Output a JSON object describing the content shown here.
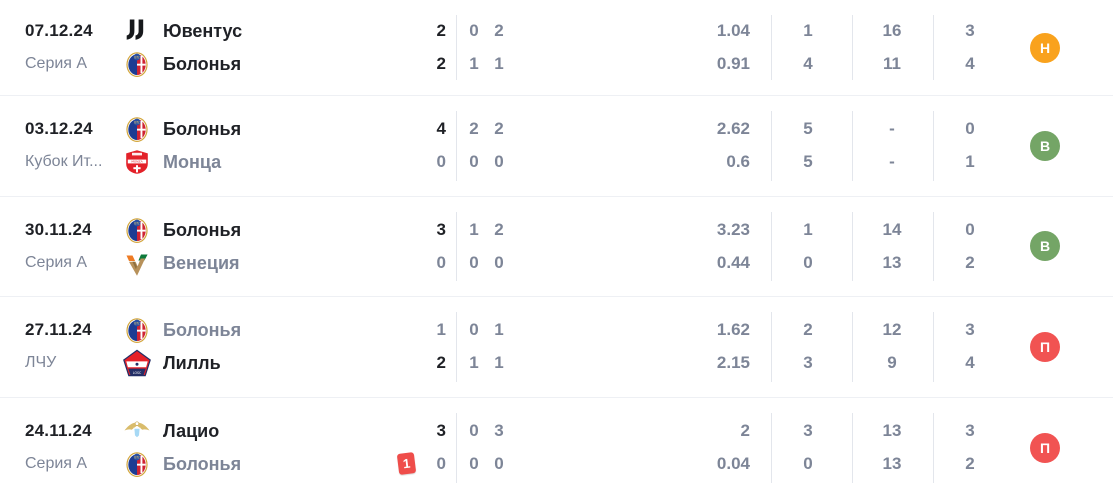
{
  "colors": {
    "text_primary": "#1f2126",
    "text_secondary": "#7d8597",
    "badge_draw": "#f9a21d",
    "badge_win": "#74a566",
    "badge_loss": "#f15352",
    "red_card": "#ef4d4a"
  },
  "matches": [
    {
      "date": "07.12.24",
      "competition": "Серия А",
      "result": {
        "label": "Н",
        "type": "draw"
      },
      "rows": [
        {
          "team": "Ювентус",
          "logo": "juventus",
          "muted": false,
          "score": "2",
          "half1": "0",
          "half2": "2",
          "xg": "1.04",
          "stat1": "1",
          "stat2": "16",
          "stat3": "3",
          "card": ""
        },
        {
          "team": "Болонья",
          "logo": "bologna",
          "muted": false,
          "score": "2",
          "half1": "1",
          "half2": "1",
          "xg": "0.91",
          "stat1": "4",
          "stat2": "11",
          "stat3": "4",
          "card": ""
        }
      ]
    },
    {
      "date": "03.12.24",
      "competition": "Кубок Ит...",
      "result": {
        "label": "В",
        "type": "win"
      },
      "rows": [
        {
          "team": "Болонья",
          "logo": "bologna",
          "muted": false,
          "score": "4",
          "half1": "2",
          "half2": "2",
          "xg": "2.62",
          "stat1": "5",
          "stat2": "-",
          "stat3": "0",
          "card": ""
        },
        {
          "team": "Монца",
          "logo": "monza",
          "muted": true,
          "score": "0",
          "half1": "0",
          "half2": "0",
          "xg": "0.6",
          "stat1": "5",
          "stat2": "-",
          "stat3": "1",
          "card": ""
        }
      ]
    },
    {
      "date": "30.11.24",
      "competition": "Серия А",
      "result": {
        "label": "В",
        "type": "win"
      },
      "rows": [
        {
          "team": "Болонья",
          "logo": "bologna",
          "muted": false,
          "score": "3",
          "half1": "1",
          "half2": "2",
          "xg": "3.23",
          "stat1": "1",
          "stat2": "14",
          "stat3": "0",
          "card": ""
        },
        {
          "team": "Венеция",
          "logo": "venezia",
          "muted": true,
          "score": "0",
          "half1": "0",
          "half2": "0",
          "xg": "0.44",
          "stat1": "0",
          "stat2": "13",
          "stat3": "2",
          "card": ""
        }
      ]
    },
    {
      "date": "27.11.24",
      "competition": "ЛЧУ",
      "result": {
        "label": "П",
        "type": "loss"
      },
      "rows": [
        {
          "team": "Болонья",
          "logo": "bologna",
          "muted": true,
          "score": "1",
          "half1": "0",
          "half2": "1",
          "xg": "1.62",
          "stat1": "2",
          "stat2": "12",
          "stat3": "3",
          "card": ""
        },
        {
          "team": "Лилль",
          "logo": "lille",
          "muted": false,
          "score": "2",
          "half1": "1",
          "half2": "1",
          "xg": "2.15",
          "stat1": "3",
          "stat2": "9",
          "stat3": "4",
          "card": ""
        }
      ]
    },
    {
      "date": "24.11.24",
      "competition": "Серия А",
      "result": {
        "label": "П",
        "type": "loss"
      },
      "rows": [
        {
          "team": "Лацио",
          "logo": "lazio",
          "muted": false,
          "score": "3",
          "half1": "0",
          "half2": "3",
          "xg": "2",
          "stat1": "3",
          "stat2": "13",
          "stat3": "3",
          "card": ""
        },
        {
          "team": "Болонья",
          "logo": "bologna",
          "muted": true,
          "score": "0",
          "half1": "0",
          "half2": "0",
          "xg": "0.04",
          "stat1": "0",
          "stat2": "13",
          "stat3": "2",
          "card": "1"
        }
      ]
    }
  ]
}
